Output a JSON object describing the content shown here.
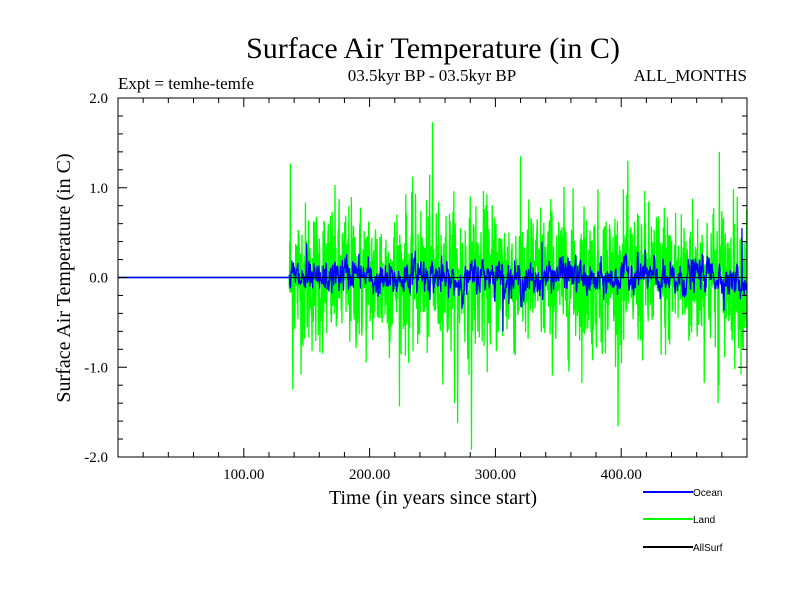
{
  "chart_data": {
    "type": "line",
    "title": "Surface Air Temperature (in C)",
    "subtitle_left": "Expt = temhe-temfe",
    "subtitle_center": "03.5kyr BP - 03.5kyr BP",
    "subtitle_right": "ALL_MONTHS",
    "xlabel": "Time (in years since start)",
    "ylabel": "Surface Air Temperature (in C)",
    "xlim": [
      0,
      500
    ],
    "ylim": [
      -2.0,
      2.0
    ],
    "x_ticks": [
      100,
      200,
      300,
      400
    ],
    "x_tick_labels": [
      "100.00",
      "200.00",
      "300.00",
      "400.00"
    ],
    "y_ticks": [
      -2.0,
      -1.0,
      0.0,
      1.0,
      2.0
    ],
    "y_tick_labels": [
      "-2.0",
      "-1.0",
      "0.0",
      "1.0",
      "2.0"
    ],
    "grid": false,
    "legend_position": "bottom-right",
    "series": [
      {
        "name": "Land",
        "color": "#00ff00",
        "flat_until": 136,
        "noise_amplitude": 0.55,
        "notable_points": [
          {
            "x": 137,
            "y": 1.27
          },
          {
            "x": 139,
            "y": -1.25
          },
          {
            "x": 250,
            "y": 1.73
          },
          {
            "x": 281,
            "y": -1.92
          },
          {
            "x": 270,
            "y": -1.62
          },
          {
            "x": 478,
            "y": 1.4
          },
          {
            "x": 477,
            "y": -1.4
          }
        ]
      },
      {
        "name": "Ocean",
        "color": "#0000ff",
        "flat_until": 136,
        "noise_amplitude": 0.18,
        "notable_points": [
          {
            "x": 150,
            "y": 0.38
          },
          {
            "x": 337,
            "y": 0.4
          },
          {
            "x": 496,
            "y": 0.55
          },
          {
            "x": 306,
            "y": -0.6
          }
        ]
      },
      {
        "name": "AllSurf",
        "color": "#000000",
        "flat_until": 136,
        "noise_amplitude": 0.0,
        "notable_points": []
      }
    ],
    "legend": [
      {
        "label": "Ocean",
        "color": "#0000ff"
      },
      {
        "label": "Land",
        "color": "#00ff00"
      },
      {
        "label": "AllSurf",
        "color": "#000000"
      }
    ]
  }
}
